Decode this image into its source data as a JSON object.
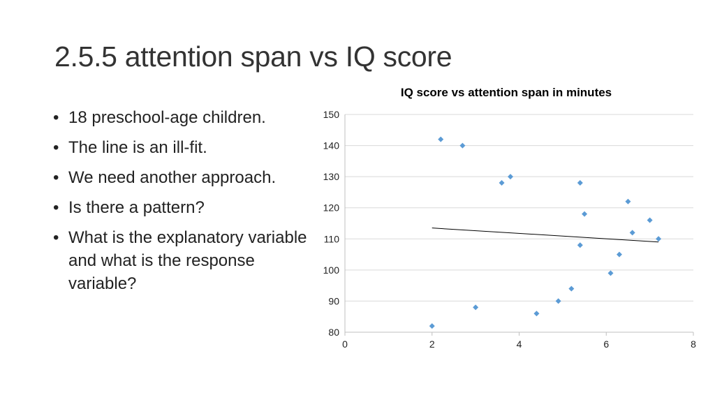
{
  "slide": {
    "title": "2.5.5 attention span vs IQ score",
    "bullets": [
      "18 preschool-age children.",
      "The line is an ill-fit.",
      "We need another approach.",
      "Is there a pattern?",
      "What is the explanatory variable and what is the response variable?"
    ]
  },
  "chart_data": {
    "type": "scatter",
    "title": "IQ score vs attention span in minutes",
    "xlabel": "",
    "ylabel": "",
    "xlim": [
      0,
      8
    ],
    "ylim": [
      80,
      150
    ],
    "x_ticks": [
      0,
      2,
      4,
      6,
      8
    ],
    "y_ticks": [
      80,
      90,
      100,
      110,
      120,
      130,
      140,
      150
    ],
    "grid": "horizontal",
    "marker_color": "#5B9BD5",
    "trendline_color": "#000000",
    "points": [
      {
        "x": 2.0,
        "y": 82
      },
      {
        "x": 2.2,
        "y": 142
      },
      {
        "x": 2.7,
        "y": 140
      },
      {
        "x": 3.0,
        "y": 88
      },
      {
        "x": 3.6,
        "y": 128
      },
      {
        "x": 3.8,
        "y": 130
      },
      {
        "x": 4.4,
        "y": 86
      },
      {
        "x": 4.9,
        "y": 90
      },
      {
        "x": 5.2,
        "y": 94
      },
      {
        "x": 5.4,
        "y": 128
      },
      {
        "x": 5.4,
        "y": 108
      },
      {
        "x": 5.5,
        "y": 118
      },
      {
        "x": 6.1,
        "y": 99
      },
      {
        "x": 6.3,
        "y": 105
      },
      {
        "x": 6.5,
        "y": 122
      },
      {
        "x": 6.6,
        "y": 112
      },
      {
        "x": 7.0,
        "y": 116
      },
      {
        "x": 7.2,
        "y": 110
      }
    ],
    "trendline": {
      "x": [
        2.0,
        7.2
      ],
      "y": [
        113.5,
        109.0
      ]
    }
  }
}
